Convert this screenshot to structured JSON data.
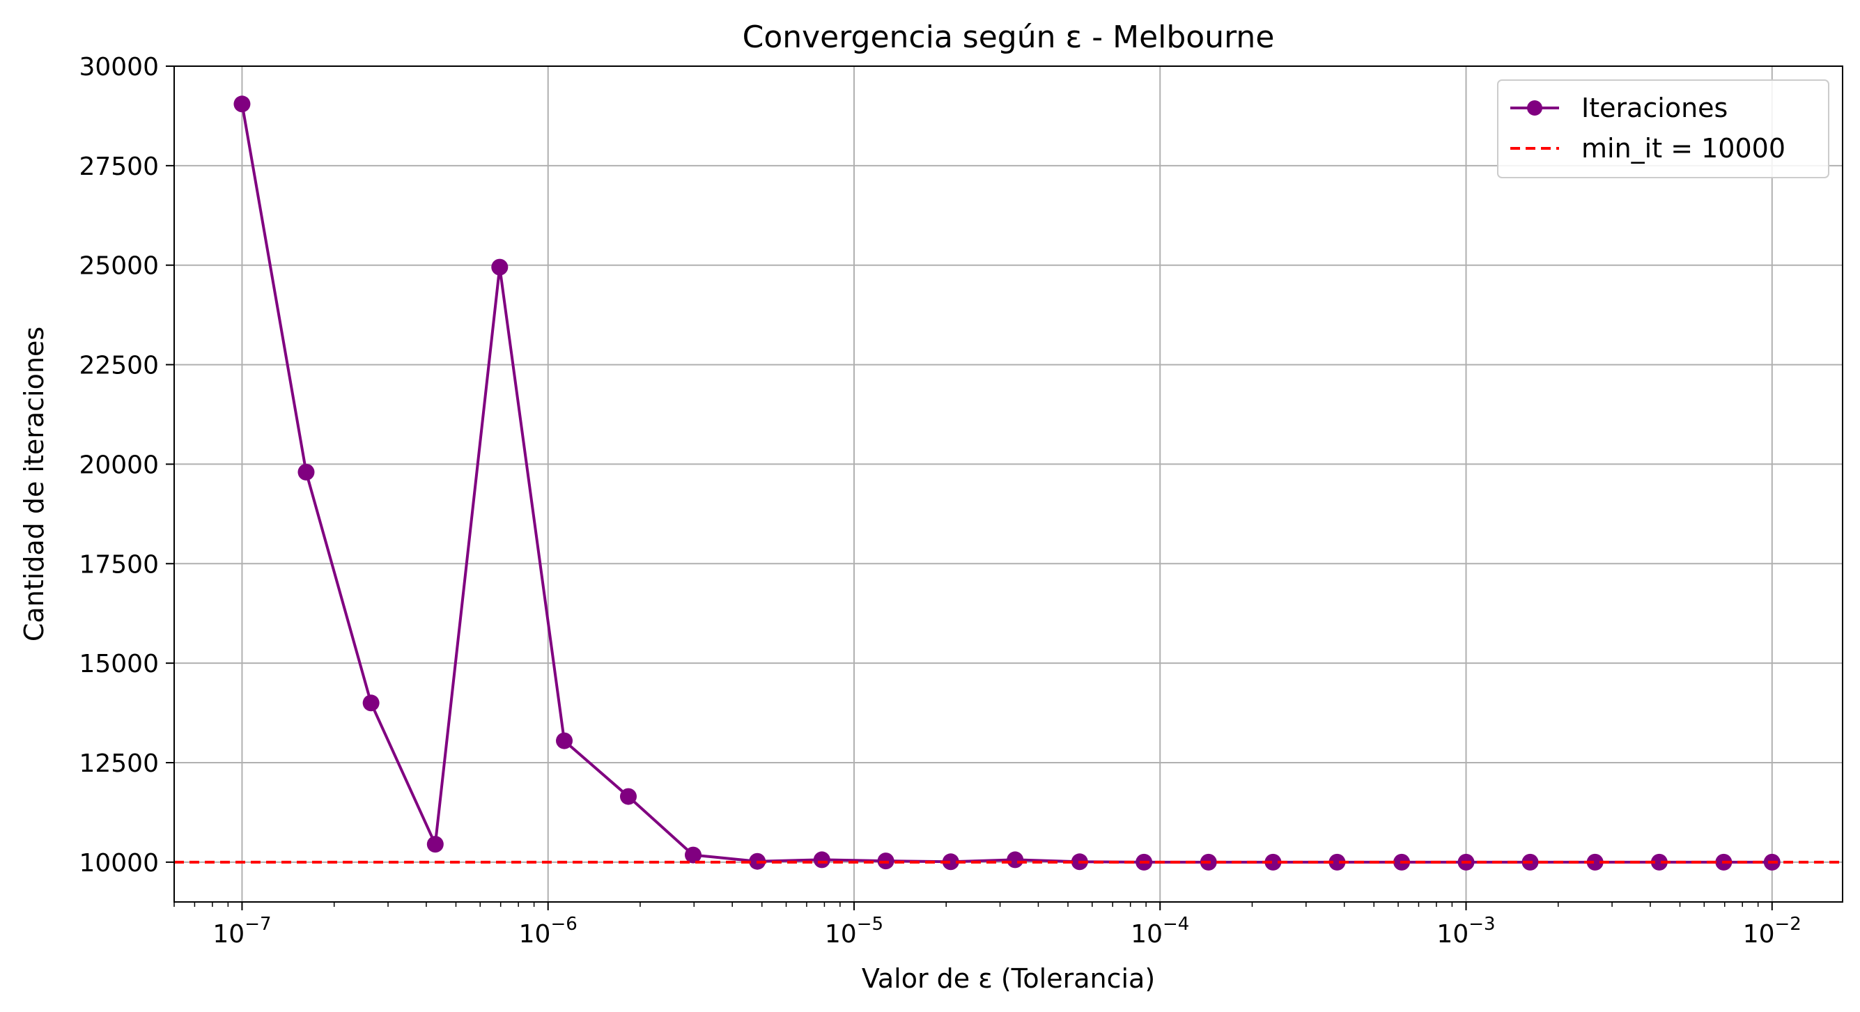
{
  "chart_data": {
    "type": "line",
    "title": "Convergencia según ε - Melbourne",
    "xlabel": "Valor de ε (Tolerancia)",
    "ylabel": "Cantidad de iteraciones",
    "x_scale": "log",
    "xlim": [
      6e-08,
      0.017
    ],
    "ylim": [
      9000,
      30000
    ],
    "grid": true,
    "legend_position": "top-right",
    "x_ticks": [
      {
        "value": 1e-07,
        "base": "10",
        "exp": "−7"
      },
      {
        "value": 1e-06,
        "base": "10",
        "exp": "−6"
      },
      {
        "value": 1e-05,
        "base": "10",
        "exp": "−5"
      },
      {
        "value": 0.0001,
        "base": "10",
        "exp": "−4"
      },
      {
        "value": 0.001,
        "base": "10",
        "exp": "−3"
      },
      {
        "value": 0.01,
        "base": "10",
        "exp": "−2"
      }
    ],
    "y_ticks": [
      10000,
      12500,
      15000,
      17500,
      20000,
      22500,
      25000,
      27500,
      30000
    ],
    "series": [
      {
        "name": "Iteraciones",
        "color": "#800080",
        "marker": "circle",
        "x": [
          1e-07,
          1.62e-07,
          2.64e-07,
          4.28e-07,
          6.95e-07,
          1.13e-06,
          1.83e-06,
          2.98e-06,
          4.83e-06,
          7.85e-06,
          1.27e-05,
          2.07e-05,
          3.36e-05,
          5.46e-05,
          8.86e-05,
          0.000144,
          0.000234,
          0.000379,
          0.000616,
          0.001,
          0.00162,
          0.00264,
          0.00428,
          0.00695,
          0.01
        ],
        "y": [
          29050,
          19800,
          14000,
          10450,
          24950,
          13050,
          11650,
          10180,
          10020,
          10060,
          10030,
          10010,
          10060,
          10010,
          10000,
          10000,
          10000,
          10000,
          10000,
          10000,
          10000,
          10000,
          10000,
          10000,
          10000
        ]
      },
      {
        "name": "min_it = 10000",
        "color": "#ff0000",
        "style": "dashed",
        "y_constant": 10000
      }
    ]
  }
}
